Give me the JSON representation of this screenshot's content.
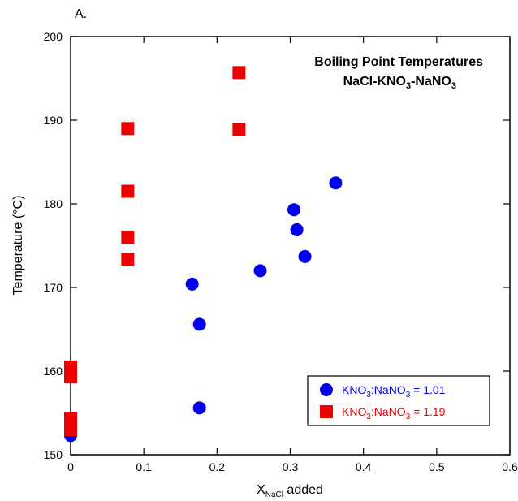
{
  "panel_label": "A.",
  "chart_data": {
    "type": "scatter",
    "title_line1": "Boiling Point Temperatures",
    "title_line2_parts": [
      "NaCl-KNO",
      "3",
      "-NaNO",
      "3"
    ],
    "xlabel_parts": [
      "X",
      "NaCl",
      " added"
    ],
    "ylabel": "Temperature (°C)",
    "xlim": [
      0,
      0.6
    ],
    "ylim": [
      150,
      200
    ],
    "xticks": [
      0,
      0.1,
      0.2,
      0.3,
      0.4,
      0.5,
      0.6
    ],
    "xtick_labels": [
      "0",
      "0.1",
      "0.2",
      "0.3",
      "0.4",
      "0.5",
      "0.6"
    ],
    "yticks": [
      150,
      160,
      170,
      180,
      190,
      200
    ],
    "ytick_labels": [
      "150",
      "160",
      "170",
      "180",
      "190",
      "200"
    ],
    "grid": false,
    "legend_position": "bottom-right",
    "series": [
      {
        "name_parts": [
          "KNO",
          "3",
          ":NaNO",
          "3",
          " = 1.01"
        ],
        "color": "#0000ee",
        "marker": "circle",
        "x": [
          0.0,
          0.166,
          0.176,
          0.176,
          0.259,
          0.305,
          0.309,
          0.32,
          0.362
        ],
        "y": [
          152.3,
          170.4,
          165.6,
          155.6,
          172.0,
          179.3,
          176.9,
          173.7,
          182.5
        ]
      },
      {
        "name_parts": [
          "KNO",
          "3",
          ":NaNO",
          "3",
          " = 1.19"
        ],
        "color": "#ee0000",
        "marker": "square",
        "x": [
          0.0,
          0.0,
          0.0,
          0.0,
          0.078,
          0.078,
          0.078,
          0.078,
          0.23,
          0.23
        ],
        "y": [
          153.0,
          154.3,
          159.3,
          160.5,
          173.4,
          176.0,
          181.5,
          189.0,
          188.9,
          195.7
        ]
      }
    ]
  }
}
